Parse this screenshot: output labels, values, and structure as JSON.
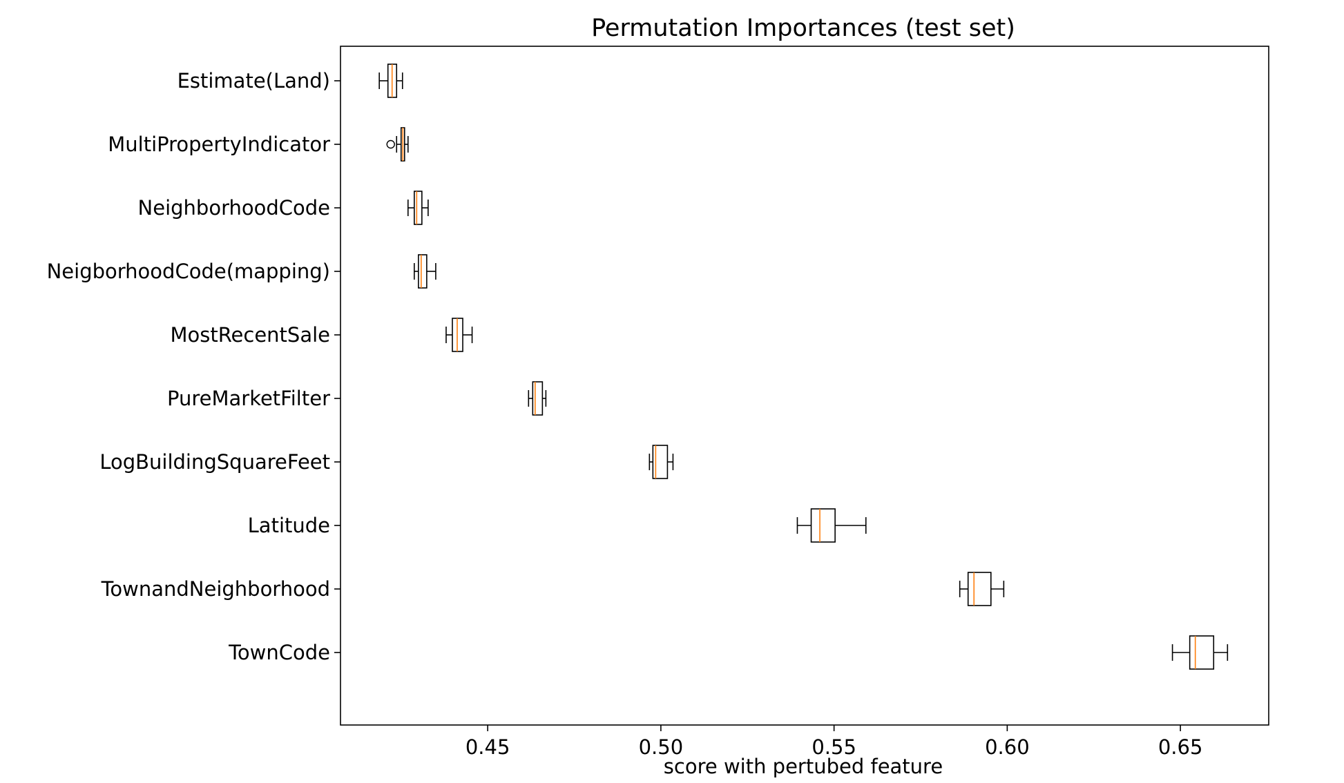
{
  "chart_data": {
    "type": "boxplot",
    "orientation": "horizontal",
    "title": "Permutation Importances (test set)",
    "xlabel": "score with pertubed feature",
    "ylabel": "",
    "xlim": [
      0.4075,
      0.6755
    ],
    "xticks": [
      0.45,
      0.5,
      0.55,
      0.6,
      0.65
    ],
    "xtick_labels": [
      "0.45",
      "0.50",
      "0.55",
      "0.60",
      "0.65"
    ],
    "grid": false,
    "colors": {
      "box": "#000000",
      "median": "#ff7f0e",
      "background": "#ffffff"
    },
    "categories": [
      "Estimate(Land)",
      "MultiPropertyIndicator",
      "NeighborhoodCode",
      "NeigborhoodCode(mapping)",
      "MostRecentSale",
      "PureMarketFilter",
      "LogBuildingSquareFeet",
      "Latitude",
      "TownandNeighborhood",
      "TownCode"
    ],
    "boxes": [
      {
        "label": "Estimate(Land)",
        "whislo": 0.4187,
        "q1": 0.4212,
        "med": 0.4224,
        "q3": 0.4237,
        "whishi": 0.4254,
        "fliers": []
      },
      {
        "label": "MultiPropertyIndicator",
        "whislo": 0.4237,
        "q1": 0.425,
        "med": 0.4255,
        "q3": 0.426,
        "whishi": 0.427,
        "fliers": [
          0.422
        ]
      },
      {
        "label": "NeighborhoodCode",
        "whislo": 0.427,
        "q1": 0.4288,
        "med": 0.4295,
        "q3": 0.431,
        "whishi": 0.4328,
        "fliers": []
      },
      {
        "label": "NeigborhoodCode(mapping)",
        "whislo": 0.4288,
        "q1": 0.43,
        "med": 0.4308,
        "q3": 0.4324,
        "whishi": 0.435,
        "fliers": []
      },
      {
        "label": "MostRecentSale",
        "whislo": 0.438,
        "q1": 0.4398,
        "med": 0.4412,
        "q3": 0.4428,
        "whishi": 0.4455,
        "fliers": []
      },
      {
        "label": "PureMarketFilter",
        "whislo": 0.4618,
        "q1": 0.463,
        "med": 0.4637,
        "q3": 0.4658,
        "whishi": 0.4668,
        "fliers": []
      },
      {
        "label": "LogBuildingSquareFeet",
        "whislo": 0.4967,
        "q1": 0.4977,
        "med": 0.4985,
        "q3": 0.5019,
        "whishi": 0.5035,
        "fliers": []
      },
      {
        "label": "Latitude",
        "whislo": 0.5394,
        "q1": 0.5434,
        "med": 0.5459,
        "q3": 0.5503,
        "whishi": 0.5592,
        "fliers": []
      },
      {
        "label": "TownandNeighborhood",
        "whislo": 0.5863,
        "q1": 0.5887,
        "med": 0.5904,
        "q3": 0.5953,
        "whishi": 0.599,
        "fliers": []
      },
      {
        "label": "TownCode",
        "whislo": 0.6477,
        "q1": 0.6527,
        "med": 0.6543,
        "q3": 0.6596,
        "whishi": 0.6636,
        "fliers": []
      }
    ]
  }
}
